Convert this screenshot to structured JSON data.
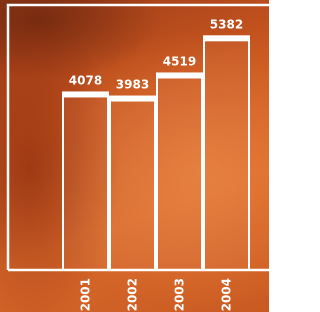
{
  "chart_data": {
    "type": "bar",
    "categories": [
      "2001",
      "2002",
      "2003",
      "2004"
    ],
    "values": [
      4078,
      3983,
      4519,
      5382
    ],
    "color": "#ffffff"
  }
}
